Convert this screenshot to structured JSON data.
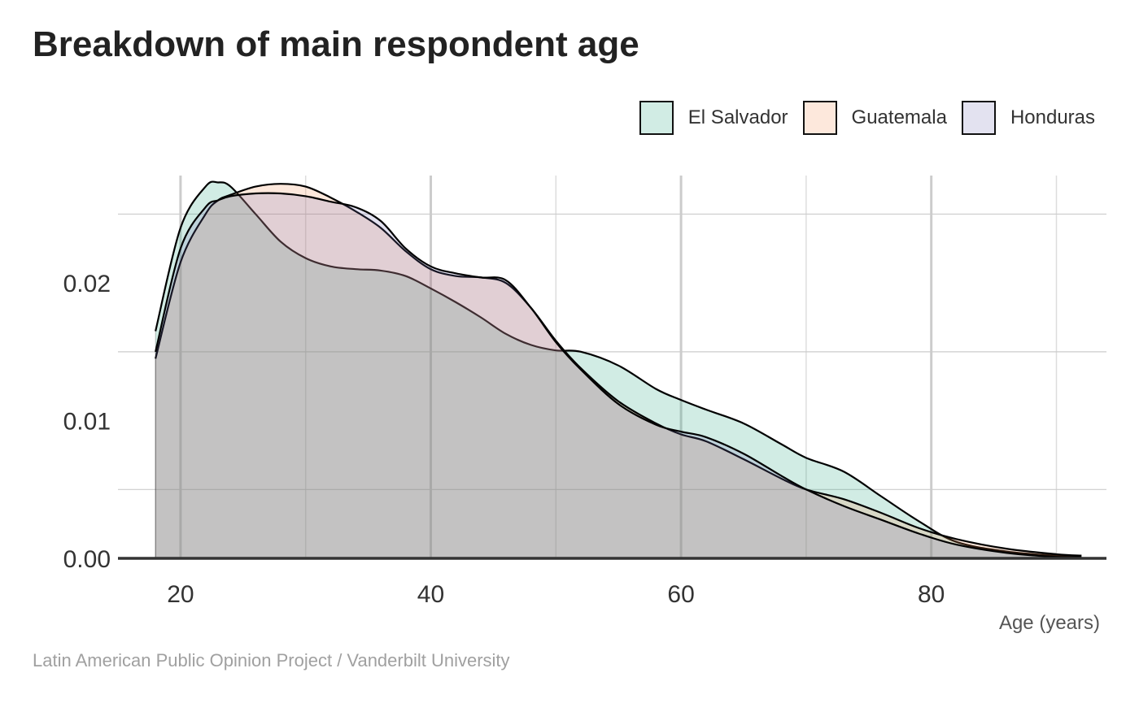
{
  "title": "Breakdown of main respondent age",
  "caption": "Latin American Public Opinion Project / Vanderbilt University",
  "chart_data": {
    "type": "area",
    "subtype": "density",
    "title": "Breakdown of main respondent age",
    "xlabel": "Age (years)",
    "ylabel": "",
    "xlim": [
      15,
      94
    ],
    "ylim": [
      0,
      0.0278
    ],
    "x_ticks": [
      20,
      40,
      60,
      80
    ],
    "y_ticks": [
      0.0,
      0.01,
      0.02
    ],
    "y_tick_labels": [
      "0.00",
      "0.01",
      "0.02"
    ],
    "grid": true,
    "legend_position": "top-right",
    "x": [
      18,
      20,
      22,
      23,
      24,
      26,
      28,
      30,
      32,
      34,
      36,
      38,
      40,
      42,
      44,
      46,
      48,
      50,
      52,
      55,
      58,
      60,
      62,
      65,
      68,
      70,
      73,
      76,
      79,
      82,
      86,
      90,
      92
    ],
    "series": [
      {
        "name": "El Salvador",
        "color": "#1b9e77",
        "values": [
          0.0165,
          0.024,
          0.027,
          0.0273,
          0.027,
          0.025,
          0.023,
          0.0218,
          0.0212,
          0.021,
          0.0209,
          0.0205,
          0.0196,
          0.0186,
          0.0175,
          0.0163,
          0.0155,
          0.0151,
          0.015,
          0.014,
          0.0123,
          0.0115,
          0.0108,
          0.0098,
          0.0083,
          0.0073,
          0.0063,
          0.0045,
          0.0027,
          0.0012,
          0.0005,
          0.0002,
          0.0002
        ]
      },
      {
        "name": "Guatemala",
        "color": "#f58a4e",
        "values": [
          0.0145,
          0.0215,
          0.025,
          0.026,
          0.0264,
          0.027,
          0.0272,
          0.027,
          0.0262,
          0.0252,
          0.024,
          0.0223,
          0.021,
          0.0205,
          0.0204,
          0.02,
          0.0182,
          0.0158,
          0.0138,
          0.0114,
          0.0098,
          0.009,
          0.0085,
          0.0072,
          0.0058,
          0.005,
          0.0043,
          0.0033,
          0.0022,
          0.0014,
          0.0007,
          0.0003,
          0.0002
        ]
      },
      {
        "name": "Honduras",
        "color": "#7570b3",
        "values": [
          0.015,
          0.0225,
          0.0255,
          0.026,
          0.0263,
          0.0265,
          0.0265,
          0.0263,
          0.0259,
          0.0255,
          0.0245,
          0.0225,
          0.0212,
          0.0207,
          0.0204,
          0.0202,
          0.0182,
          0.0157,
          0.0137,
          0.0112,
          0.0097,
          0.0092,
          0.0088,
          0.0076,
          0.006,
          0.005,
          0.0038,
          0.0028,
          0.0018,
          0.001,
          0.0004,
          0.0001,
          0.0001
        ]
      }
    ]
  }
}
